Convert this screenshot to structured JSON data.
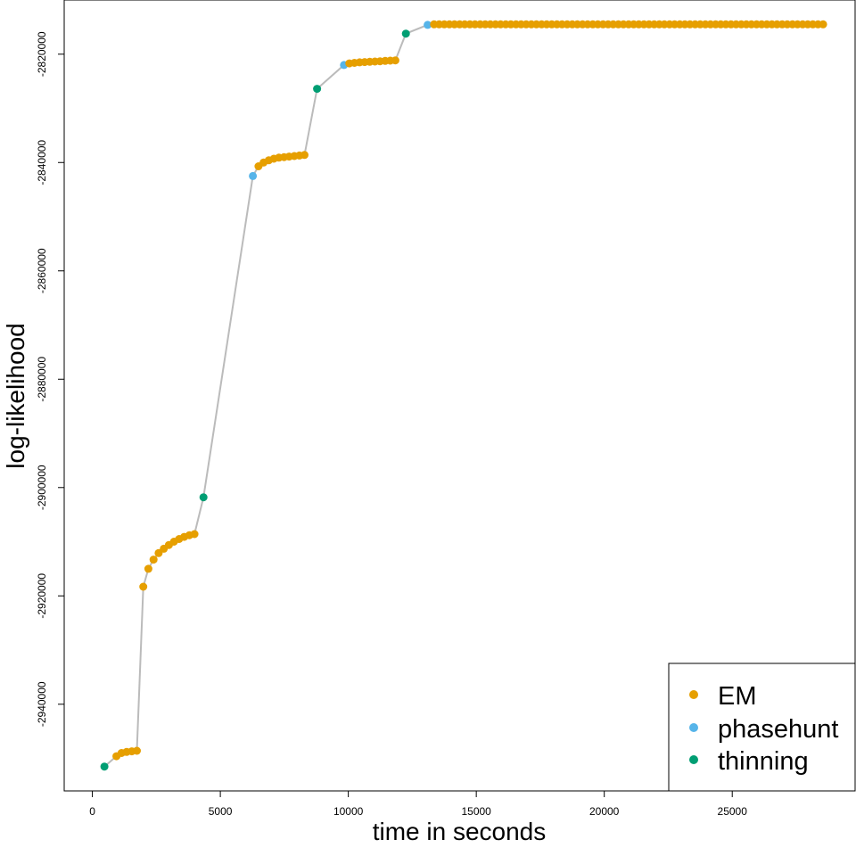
{
  "chart_data": {
    "type": "scatter",
    "xlabel": "time in seconds",
    "ylabel": "log-likelihood",
    "xlim": [
      -1100,
      29800
    ],
    "ylim": [
      -2956000,
      -2810000
    ],
    "x_ticks": [
      0,
      5000,
      10000,
      15000,
      20000,
      25000
    ],
    "x_tick_labels": [
      "0",
      "5000",
      "10000",
      "15000",
      "20000",
      "25000"
    ],
    "y_ticks": [
      -2940000,
      -2920000,
      -2900000,
      -2880000,
      -2860000,
      -2840000,
      -2820000
    ],
    "y_tick_labels": [
      "-2940000",
      "-2920000",
      "-2900000",
      "-2880000",
      "-2860000",
      "-2840000",
      "-2820000"
    ],
    "grid": false,
    "connect_line_color": "#bbbbbb",
    "legend": {
      "position": "bottom-right",
      "entries": [
        {
          "label": "EM",
          "color": "#E69F00"
        },
        {
          "label": "phasehunt",
          "color": "#56B4E9"
        },
        {
          "label": "thinning",
          "color": "#009E73"
        }
      ]
    },
    "series": [
      {
        "name": "EM",
        "color": "#E69F00",
        "x": [
          940,
          1140,
          1340,
          1540,
          1740,
          1990,
          2190,
          2390,
          2590,
          2790,
          2990,
          3190,
          3390,
          3590,
          3790,
          3990,
          6490,
          6690,
          6890,
          7090,
          7290,
          7490,
          7690,
          7890,
          8090,
          8290,
          10040,
          10240,
          10440,
          10640,
          10840,
          11040,
          11240,
          11440,
          11640,
          11840
        ],
        "y": [
          -2949600,
          -2949000,
          -2948800,
          -2948700,
          -2948600,
          -2918300,
          -2915000,
          -2913300,
          -2912100,
          -2911300,
          -2910600,
          -2910000,
          -2909500,
          -2909100,
          -2908800,
          -2908600,
          -2840700,
          -2840000,
          -2839600,
          -2839300,
          -2839100,
          -2839000,
          -2838900,
          -2838800,
          -2838700,
          -2838600,
          -2821700,
          -2821600,
          -2821500,
          -2821450,
          -2821400,
          -2821350,
          -2821300,
          -2821250,
          -2821200,
          -2821150
        ],
        "x_plateau_start": 13350,
        "x_plateau_end": 28600,
        "x_plateau_step": 200,
        "y_plateau": -2814500
      },
      {
        "name": "phasehunt",
        "color": "#56B4E9",
        "x": [
          6270,
          9830,
          13100
        ],
        "y": [
          -2842500,
          -2822000,
          -2814600
        ]
      },
      {
        "name": "thinning",
        "color": "#009E73",
        "x": [
          470,
          4340,
          8780,
          12250
        ],
        "y": [
          -2951500,
          -2901800,
          -2826400,
          -2816200
        ]
      }
    ]
  }
}
